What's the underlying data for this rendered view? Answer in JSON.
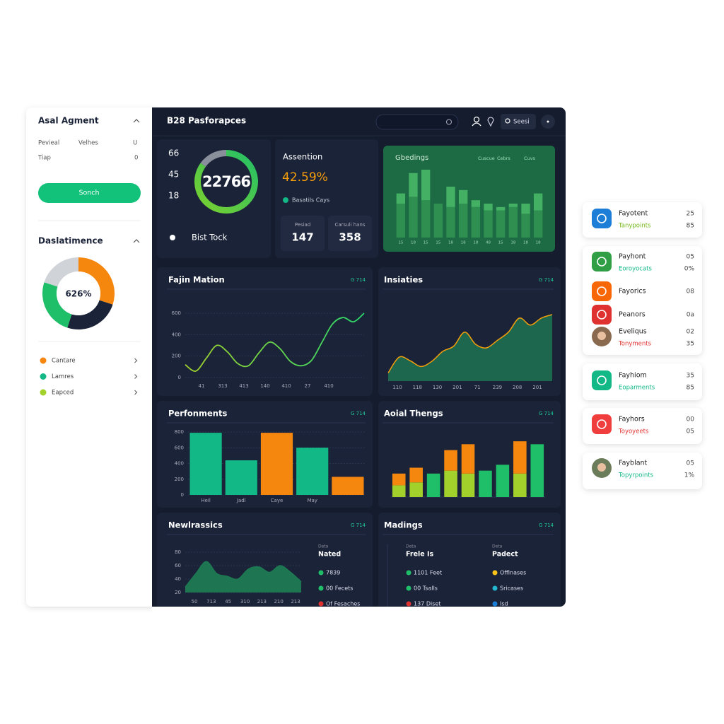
{
  "sidebar": {
    "title": "Asal Agment",
    "rows": [
      [
        "Pevieal",
        "Velhes",
        "U"
      ],
      [
        "Tiap",
        "0"
      ]
    ],
    "button": "Sonch",
    "section_title": "Daslatimence",
    "donut": {
      "values": [
        30,
        25,
        25,
        20
      ],
      "colors": [
        "#f5870f",
        "#1b2338",
        "#1fbf6a",
        "#d0d3d8"
      ],
      "center_label": "626%"
    },
    "legend": [
      {
        "name": "Cantare",
        "color": "#f5870f"
      },
      {
        "name": "Lamres",
        "color": "#12b886"
      },
      {
        "name": "Eapced",
        "color": "#a3d12c"
      }
    ]
  },
  "header": {
    "title": "B28 Pasforapces",
    "button": "Seesi"
  },
  "stat_panel": {
    "numbers": [
      66,
      45,
      18
    ],
    "gauge": {
      "label": "22766",
      "value": 85,
      "max": 100
    },
    "footer": "Bist Tock"
  },
  "attention_panel": {
    "title": "Assention",
    "value": "42.59%",
    "note": "Basatils Cays",
    "stats": [
      {
        "label": "Pesiad",
        "value": 147
      },
      {
        "label": "Carsuli hans",
        "value": 358
      }
    ]
  },
  "green_panel": {
    "title": "Gbedings",
    "legend": [
      "Cuscue",
      "Cebrs",
      "Cuvs"
    ],
    "x_labels": [
      "15",
      "18",
      "15",
      "15",
      "18",
      "18",
      "18",
      "48",
      "15",
      "18",
      "18",
      "18"
    ],
    "ylim": [
      0,
      100
    ],
    "series": [
      {
        "color": "#2f8f50",
        "values": [
          50,
          60,
          55,
          50,
          45,
          50,
          45,
          40,
          40,
          45,
          35,
          40
        ]
      },
      {
        "color": "#43b063",
        "values": [
          15,
          35,
          45,
          0,
          30,
          20,
          10,
          10,
          5,
          5,
          15,
          25
        ]
      }
    ]
  },
  "line_panel": {
    "type": "line",
    "title": "Fajin Mation",
    "tag": "G 714",
    "ylim": [
      0,
      600
    ],
    "yticks": [
      0,
      200,
      400,
      600
    ],
    "x_labels": [
      "41",
      "313",
      "413",
      "140",
      "410",
      "27",
      "410"
    ],
    "values": [
      120,
      60,
      180,
      300,
      240,
      130,
      110,
      230,
      330,
      270,
      150,
      110,
      160,
      330,
      500,
      560,
      520,
      600
    ],
    "color": "#2bd66b"
  },
  "area_panel": {
    "type": "area",
    "title": "Insiaties",
    "tag": "G 714",
    "ylim": [
      0,
      600
    ],
    "x_labels": [
      "110",
      "118",
      "130",
      "201",
      "71",
      "239",
      "208",
      "201"
    ],
    "values": [
      70,
      205,
      175,
      125,
      170,
      255,
      300,
      420,
      315,
      285,
      350,
      420,
      540,
      480,
      540,
      570
    ],
    "color": "#f59e0b",
    "fill": "#1d6b4f"
  },
  "bar_panel": {
    "type": "bar",
    "title": "Perfonments",
    "tag": "G 714",
    "ylim": [
      0,
      800
    ],
    "yticks": [
      0,
      200,
      400,
      600,
      800
    ],
    "categories": [
      "Heil",
      "Jadl",
      "Caye",
      "May",
      null
    ],
    "values": [
      790,
      440,
      790,
      600,
      230
    ],
    "colors": [
      "#12b886",
      "#12b886",
      "#f5870f",
      "#12b886",
      "#f5870f"
    ]
  },
  "stacked_panel": {
    "type": "stacked-bar",
    "title": "Aoial Thengs",
    "tag": "G 714",
    "ylim": [
      0,
      100
    ],
    "series": [
      {
        "colors": [
          "#a3d12c",
          "#a3d12c",
          "#1fbf6a",
          "#a3d12c",
          "#a3d12c",
          "#1fbf6a",
          "#1fbf6a",
          "#a3d12c",
          "#1fbf6a"
        ],
        "values": [
          20,
          25,
          40,
          45,
          40,
          45,
          55,
          40,
          90
        ]
      },
      {
        "color": "#f5870f",
        "values": [
          20,
          25,
          0,
          35,
          50,
          0,
          0,
          55,
          0
        ]
      }
    ]
  },
  "newl_panel": {
    "type": "area",
    "title": "Newlrassics",
    "tag": "G 714",
    "ylim": [
      20,
      80
    ],
    "yticks": [
      20,
      40,
      60,
      80
    ],
    "x_labels": [
      "50",
      "713",
      "45",
      "310",
      "213",
      "210",
      "213"
    ],
    "values": [
      28,
      48,
      66,
      48,
      44,
      40,
      55,
      58,
      50,
      60,
      50,
      36
    ],
    "fill": "#1d7a52",
    "list": {
      "header": "Deta",
      "title": "Nated",
      "items": [
        {
          "text": "7839",
          "color": "#1fbf6a"
        },
        {
          "text": "00 Fecets",
          "color": "#1fbf6a"
        },
        {
          "text": "Of Fesaches",
          "color": "#e03131"
        }
      ]
    }
  },
  "madings_panel": {
    "title": "Madings",
    "tag": "G 714",
    "columns": [
      {
        "header": "Deta",
        "title": "Frele Is",
        "items": [
          {
            "text": "1101 Feet",
            "color": "#1fbf6a"
          },
          {
            "text": "00 Tsalls",
            "color": "#1fbf6a"
          },
          {
            "text": "137 Diset",
            "color": "#e03131"
          }
        ]
      },
      {
        "header": "Deta",
        "title": "Padect",
        "items": [
          {
            "text": "Offlnases",
            "color": "#fcc419"
          },
          {
            "text": "Sricases",
            "color": "#22b8cf"
          },
          {
            "text": "Isd",
            "color": "#1c7ed6"
          }
        ]
      }
    ]
  },
  "right_cards": [
    {
      "title": "Fayotent",
      "subtitle": "Tanypoints",
      "subtitle_color": "#74b816",
      "icon_color": "#1c7ed6",
      "values": [
        25,
        85
      ]
    },
    {
      "title": "Payhont",
      "subtitle": "Eoroyocats",
      "subtitle_color": "#12b886",
      "icon_color": "#2f9e44",
      "values": [
        "05",
        "0%"
      ]
    },
    {
      "title": "Fayorics",
      "icon_color": "#f76707",
      "values": [
        "08"
      ]
    },
    {
      "title": "Peanors",
      "icon_color": "#e03131",
      "values": [
        "0a"
      ]
    },
    {
      "title": "Eveliqus",
      "subtitle": "Tonyments",
      "subtitle_color": "#e03131",
      "icon_color": "#8a6a4f",
      "values": [
        "02",
        35
      ]
    },
    {
      "title": "Fayhiom",
      "subtitle": "Eoparments",
      "subtitle_color": "#12b886",
      "icon_color": "#12b886",
      "values": [
        35,
        85
      ]
    },
    {
      "title": "Fayhors",
      "subtitle": "Toyoyeets",
      "subtitle_color": "#e03131",
      "icon_color": "#f03e3e",
      "values": [
        "00",
        "05"
      ]
    },
    {
      "title": "Fayblant",
      "subtitle": "Topyrpoints",
      "subtitle_color": "#12b886",
      "icon_color": "#6b7c5a",
      "values": [
        "05",
        "1%"
      ]
    }
  ]
}
